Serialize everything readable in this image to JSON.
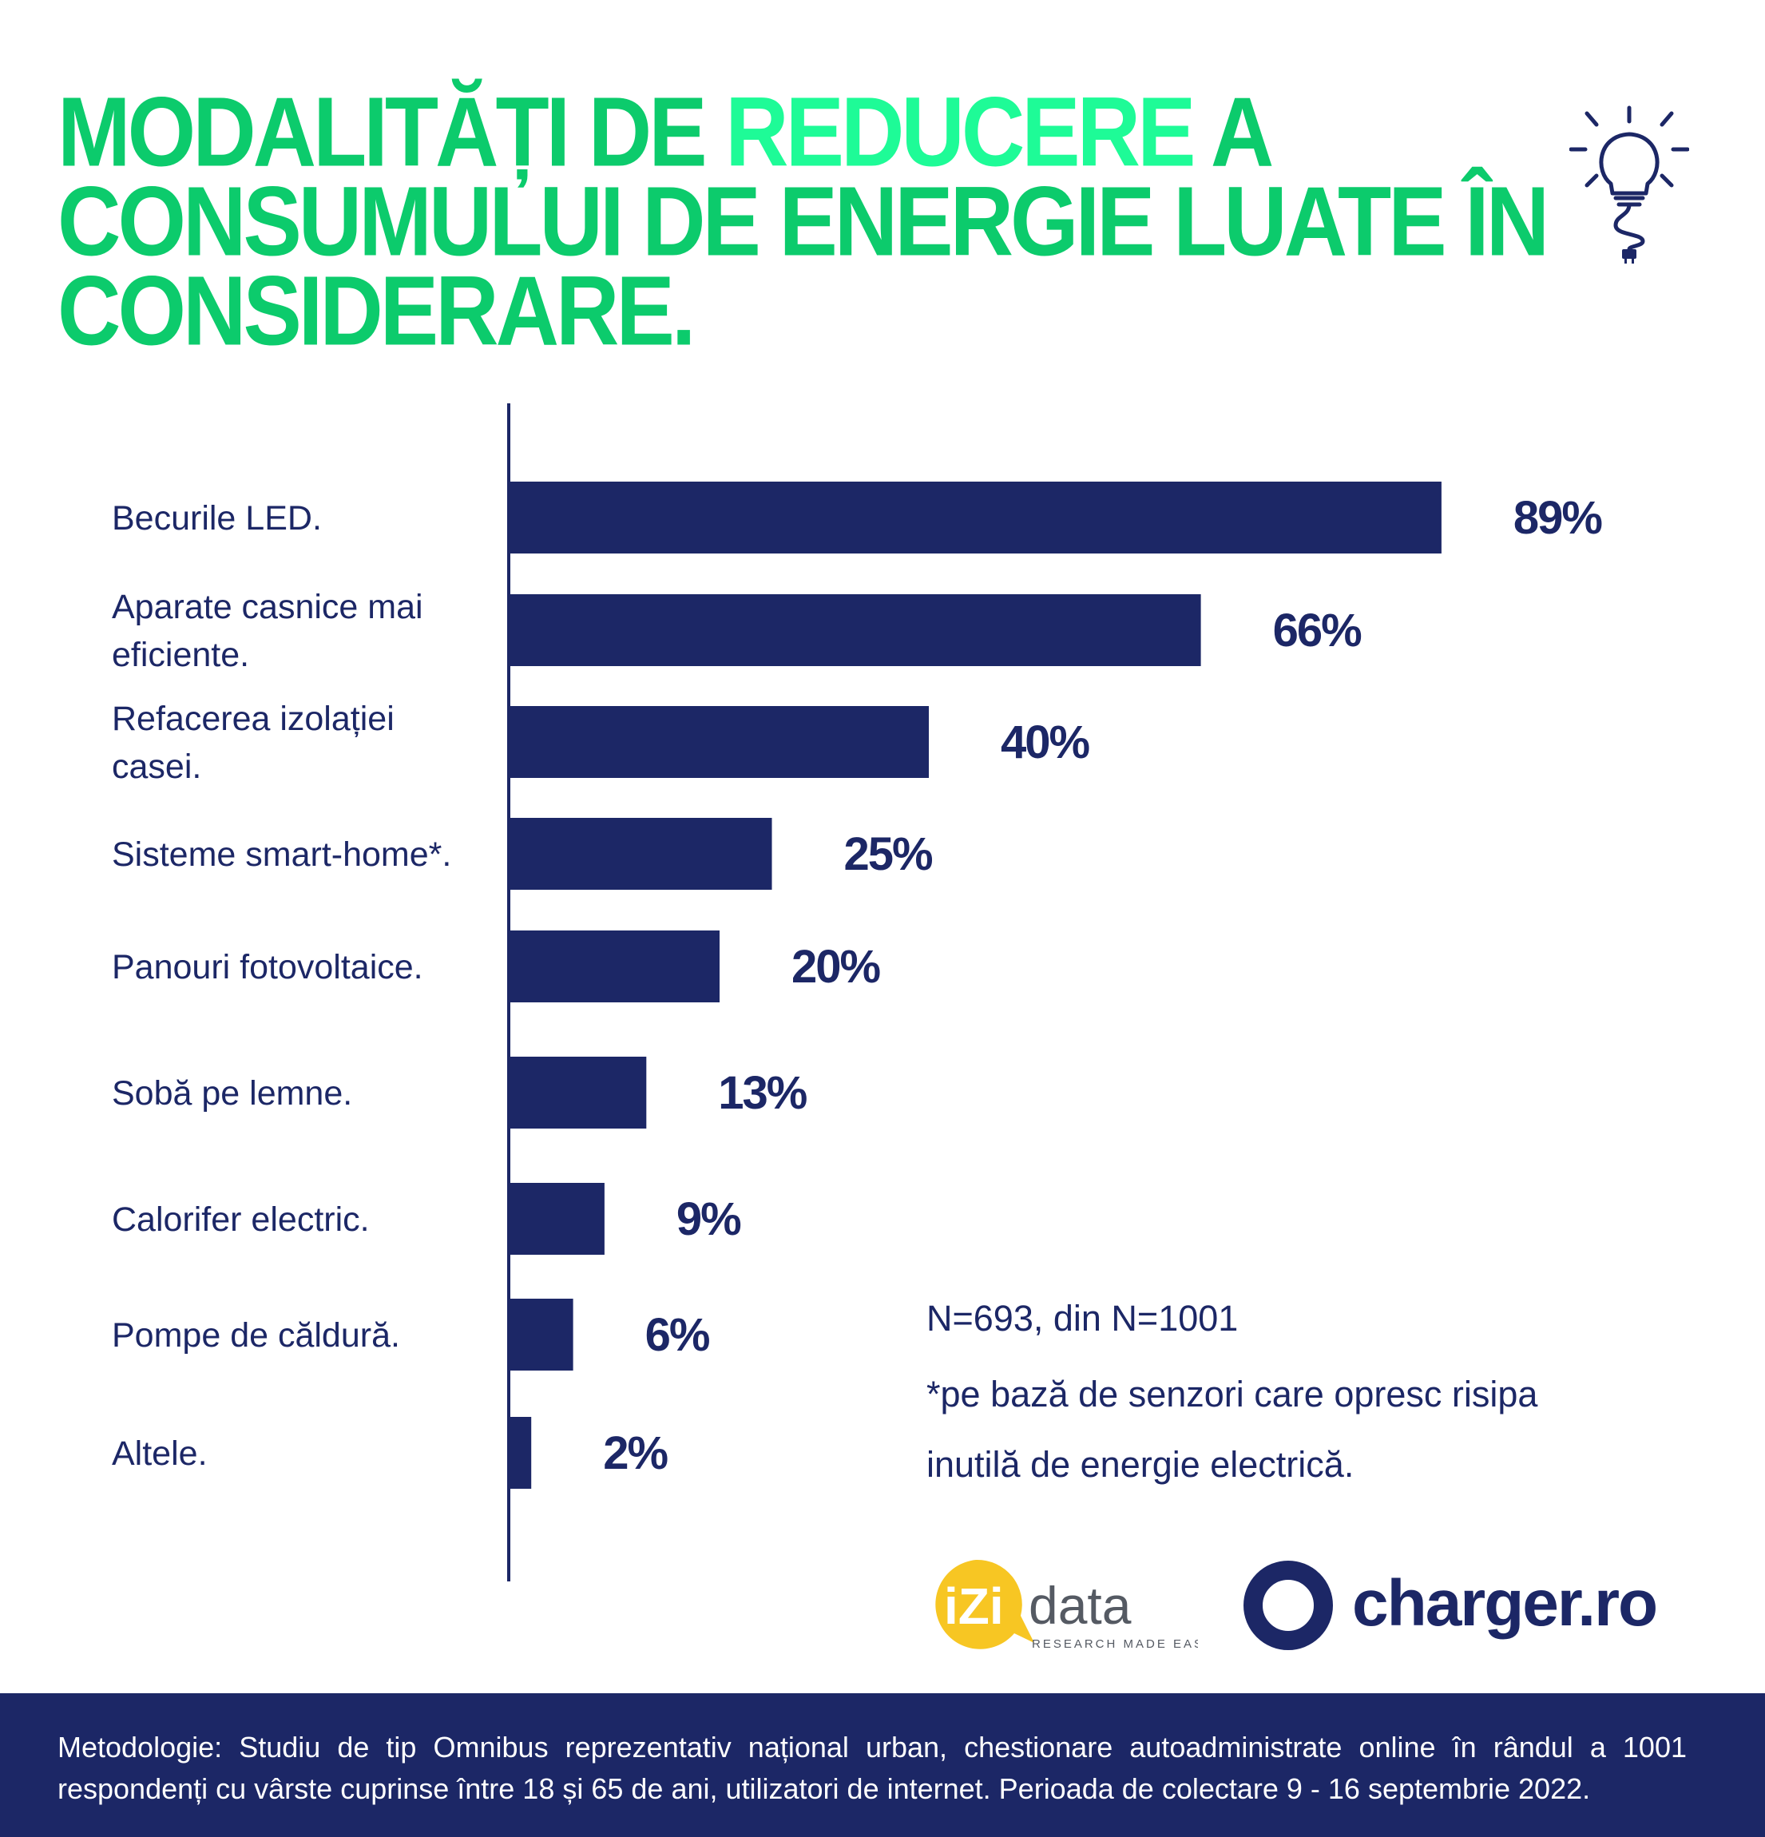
{
  "header": {
    "title_part1": "MODALITĂȚI DE ",
    "title_highlight": "REDUCERE",
    "title_part2": " A CONSUMULUI DE ENERGIE LUATE ÎN CONSIDERARE."
  },
  "icon": "lightbulb-plug-icon",
  "colors": {
    "title": "#0ccb6c",
    "title_highlight": "#1efb97",
    "bars": "#1c2766",
    "text": "#1c2766",
    "footer_bg": "#1c2766"
  },
  "chart_data": {
    "type": "bar",
    "orientation": "horizontal",
    "categories": [
      [
        "Becurile LED."
      ],
      [
        "Aparate casnice mai",
        "eficiente."
      ],
      [
        "Refacerea izolației",
        "casei."
      ],
      [
        "Sisteme smart-home*."
      ],
      [
        "Panouri fotovoltaice."
      ],
      [
        "Sobă pe lemne."
      ],
      [
        "Calorifer electric."
      ],
      [
        "Pompe de căldură."
      ],
      [
        "Altele."
      ]
    ],
    "values": [
      89,
      66,
      40,
      25,
      20,
      13,
      9,
      6,
      2
    ],
    "value_labels": [
      "89%",
      "66%",
      "40%",
      "25%",
      "20%",
      "13%",
      "9%",
      "6%",
      "2%"
    ],
    "xlim": [
      0,
      100
    ],
    "grid": false,
    "legend": "none"
  },
  "notes": {
    "sample": "N=693, din N=1001",
    "footnote_line1": "*pe bază de senzori care opresc risipa",
    "footnote_line2": "inutilă de energie electrică."
  },
  "logos": {
    "izi_word1": "iZi",
    "izi_word2": "data",
    "izi_tagline": "RESEARCH MADE EASY",
    "charger_text": "charger.ro"
  },
  "footer": {
    "methodology": "Metodologie: Studiu de tip Omnibus reprezentativ național urban, chestionare autoadministrate online în rândul a 1001 respondenți cu vârste cuprinse între 18 și 65 de ani, utilizatori de internet. Perioada de colectare 9 - 16 septembrie 2022."
  }
}
